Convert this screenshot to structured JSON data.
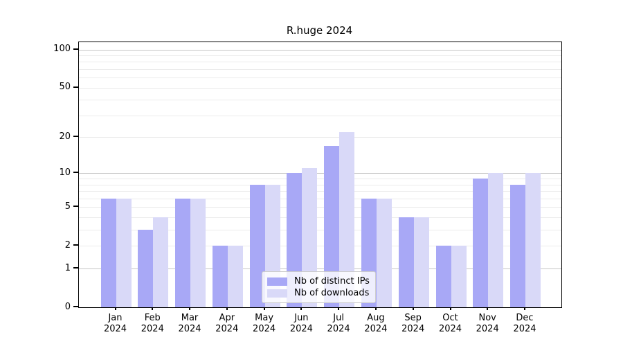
{
  "chart_data": {
    "type": "bar",
    "title": "R.huge 2024",
    "categories": [
      "Jan 2024",
      "Feb 2024",
      "Mar 2024",
      "Apr 2024",
      "May 2024",
      "Jun 2024",
      "Jul 2024",
      "Aug 2024",
      "Sep 2024",
      "Oct 2024",
      "Nov 2024",
      "Dec 2024"
    ],
    "series": [
      {
        "name": "Nb of distinct IPs",
        "color": "#a8a8f6",
        "values": [
          6,
          3,
          6,
          2,
          8,
          10,
          17,
          6,
          4,
          2,
          9,
          8
        ]
      },
      {
        "name": "Nb of downloads",
        "color": "#d9d9f8",
        "values": [
          6,
          4,
          6,
          2,
          8,
          11,
          22,
          6,
          4,
          2,
          10,
          10
        ]
      }
    ],
    "xlabel": "",
    "ylabel": "",
    "y_axis": {
      "scale": "log1p",
      "ticks": [
        0,
        1,
        2,
        5,
        10,
        20,
        50,
        100
      ],
      "range": [
        0,
        114
      ],
      "major_gridlines": [
        1,
        10,
        100
      ],
      "minor_gridlines": [
        2,
        3,
        4,
        5,
        6,
        7,
        8,
        9,
        20,
        30,
        40,
        50,
        60,
        70,
        80,
        90
      ]
    },
    "legend_position": "lower center",
    "grid": true
  }
}
